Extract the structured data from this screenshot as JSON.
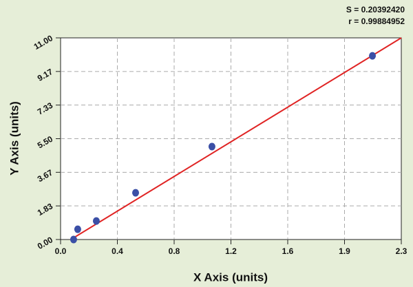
{
  "chart_data": {
    "type": "scatter",
    "annotations": [
      "S = 0.20392420",
      "r = 0.99884952"
    ],
    "x_label": "X Axis (units)",
    "y_label": "Y Axis (units)",
    "xlim": [
      0,
      2.325
    ],
    "ylim": [
      0,
      11
    ],
    "xticks": [
      {
        "value": 0,
        "label": "0.0"
      },
      {
        "value": 0.3875,
        "label": "0.4"
      },
      {
        "value": 0.775,
        "label": "0.8"
      },
      {
        "value": 1.1625,
        "label": "1.2"
      },
      {
        "value": 1.55,
        "label": "1.6"
      },
      {
        "value": 1.9375,
        "label": "1.9"
      },
      {
        "value": 2.325,
        "label": "2.3"
      }
    ],
    "yticks": [
      {
        "value": 0,
        "label": "0.00"
      },
      {
        "value": 1.8333,
        "label": "1.83"
      },
      {
        "value": 3.6667,
        "label": "3.67"
      },
      {
        "value": 5.5,
        "label": "5.50"
      },
      {
        "value": 7.3333,
        "label": "7.33"
      },
      {
        "value": 9.1667,
        "label": "9.17"
      },
      {
        "value": 11,
        "label": "11.00"
      }
    ],
    "grid": true,
    "points": {
      "color": "#3b4fa6",
      "x": [
        0.089,
        0.117,
        0.244,
        0.512,
        1.033,
        2.128
      ],
      "values": [
        0,
        0.56,
        1.01,
        2.55,
        5.07,
        10.02
      ]
    },
    "fit": {
      "color": "#e02424",
      "x": [
        0.07,
        2.325
      ],
      "values": [
        0,
        11
      ]
    }
  }
}
